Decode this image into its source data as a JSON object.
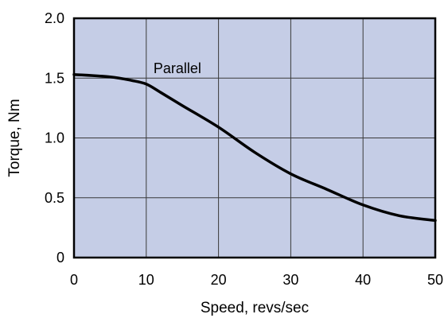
{
  "chart_data": {
    "type": "line",
    "title": "",
    "xlabel": "Speed, revs/sec",
    "ylabel": "Torque, Nm",
    "xlim": [
      0,
      50
    ],
    "ylim": [
      0,
      2.0
    ],
    "x_ticks": [
      0,
      10,
      20,
      30,
      40,
      50
    ],
    "y_ticks": [
      0,
      0.5,
      1.0,
      1.5,
      2.0
    ],
    "x_tick_labels": [
      "0",
      "10",
      "20",
      "30",
      "40",
      "50"
    ],
    "y_tick_labels": [
      "0",
      "0.5",
      "1.0",
      "1.5",
      "2.0"
    ],
    "grid": true,
    "legend": "none",
    "series": [
      {
        "name": "Parallel",
        "x": [
          0,
          5,
          8,
          10,
          12,
          15,
          20,
          25,
          30,
          35,
          40,
          45,
          50
        ],
        "y": [
          1.53,
          1.51,
          1.48,
          1.45,
          1.38,
          1.27,
          1.09,
          0.88,
          0.7,
          0.57,
          0.44,
          0.35,
          0.31
        ]
      }
    ],
    "annotations": [
      {
        "text": "Parallel",
        "x": 11,
        "y": 1.58
      }
    ],
    "colors": {
      "plot_background": "#c5cde6",
      "line": "#000000",
      "grid": "#3a3a3a"
    }
  }
}
